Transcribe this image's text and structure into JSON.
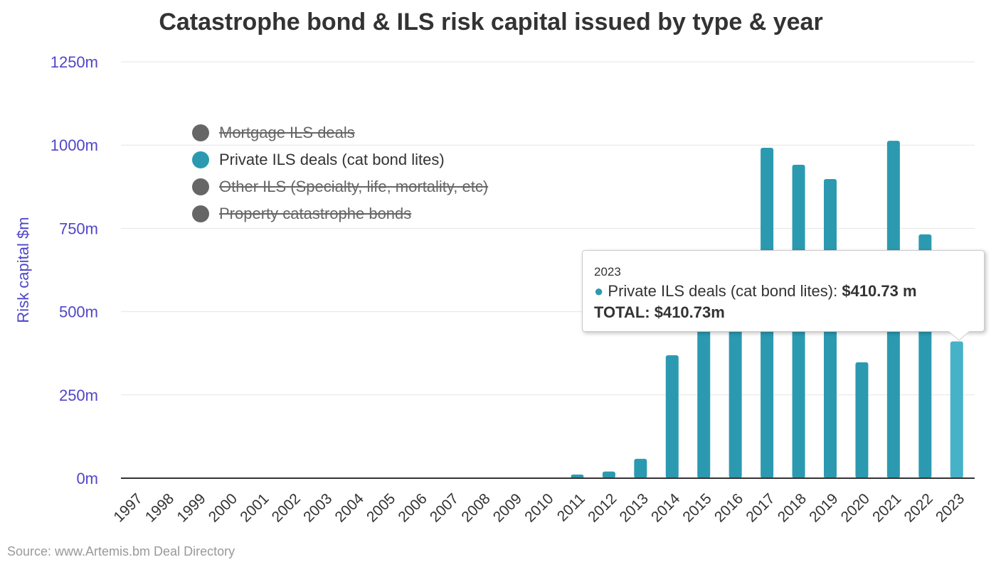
{
  "chart_data": {
    "type": "bar",
    "title": "Catastrophe bond & ILS risk capital issued by type & year",
    "ylabel": "Risk capital $m",
    "xlabel": "",
    "ylim": [
      0,
      1250
    ],
    "yticks": [
      "0m",
      "250m",
      "500m",
      "750m",
      "1000m",
      "1250m"
    ],
    "grid": true,
    "legend_placement": "top-left",
    "categories": [
      "1997",
      "1998",
      "1999",
      "2000",
      "2001",
      "2002",
      "2003",
      "2004",
      "2005",
      "2006",
      "2007",
      "2008",
      "2009",
      "2010",
      "2011",
      "2012",
      "2013",
      "2014",
      "2015",
      "2016",
      "2017",
      "2018",
      "2019",
      "2020",
      "2021",
      "2022",
      "2023"
    ],
    "series": [
      {
        "name": "Mortgage ILS deals",
        "visible": false,
        "color": "#666666"
      },
      {
        "name": "Private ILS deals (cat bond lites)",
        "visible": true,
        "color": "#2b9ab0",
        "values": [
          0,
          0,
          0,
          0,
          0,
          0,
          0,
          0,
          0,
          0,
          0,
          0,
          0,
          0,
          11,
          20,
          58,
          369,
          470,
          600,
          992,
          941,
          898,
          348,
          1013,
          732,
          410.73
        ]
      },
      {
        "name": "Other ILS (Specialty, life, mortality, etc)",
        "visible": false,
        "color": "#666666"
      },
      {
        "name": "Property catastrophe bonds",
        "visible": false,
        "color": "#666666"
      }
    ],
    "highlight_color": "#45b2c8"
  },
  "tooltip": {
    "year": "2023",
    "series_label": "Private ILS deals (cat bond lites): ",
    "series_value": "$410.73 m",
    "total": "TOTAL: $410.73m"
  },
  "source": "Source: www.Artemis.bm Deal Directory"
}
